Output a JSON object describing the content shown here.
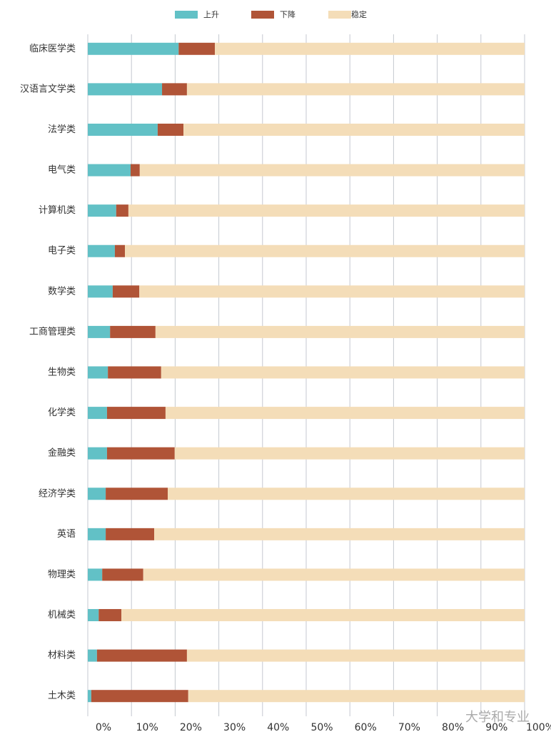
{
  "chart_data": {
    "type": "stacked-barh",
    "categories": [
      "临床医学类",
      "汉语言文学类",
      "法学类",
      "电气类",
      "计算机类",
      "电子类",
      "数学类",
      "工商管理类",
      "生物类",
      "化学类",
      "金融类",
      "经济学类",
      "英语",
      "物理类",
      "机械类",
      "材料类",
      "土木类"
    ],
    "series": [
      {
        "name": "上升",
        "color": "#62c1c6",
        "values": [
          20.8,
          17.0,
          16.0,
          9.8,
          6.5,
          6.2,
          5.7,
          5.1,
          4.6,
          4.4,
          4.4,
          4.1,
          4.1,
          3.3,
          2.5,
          2.1,
          0.8
        ]
      },
      {
        "name": "下降",
        "color": "#b05437",
        "values": [
          8.3,
          5.7,
          5.9,
          2.1,
          2.8,
          2.3,
          6.1,
          10.4,
          12.2,
          13.4,
          15.5,
          14.2,
          11.1,
          9.4,
          5.2,
          20.6,
          22.2
        ]
      },
      {
        "name": "稳定",
        "color": "#f4ddb8",
        "values": [
          70.9,
          77.3,
          78.1,
          88.1,
          90.7,
          91.5,
          88.2,
          84.5,
          83.2,
          82.2,
          80.1,
          81.7,
          84.8,
          87.3,
          92.3,
          77.3,
          77.0
        ]
      }
    ],
    "xlim": [
      0,
      100
    ],
    "xticks": [
      {
        "value": 0,
        "label": "0%"
      },
      {
        "value": 10,
        "label": "10%"
      },
      {
        "value": 20,
        "label": "20%"
      },
      {
        "value": 30,
        "label": "30%"
      },
      {
        "value": 40,
        "label": "40%"
      },
      {
        "value": 50,
        "label": "50%"
      },
      {
        "value": 60,
        "label": "60%"
      },
      {
        "value": 70,
        "label": "70%"
      },
      {
        "value": 80,
        "label": "80%"
      },
      {
        "value": 90,
        "label": "90%"
      },
      {
        "value": 100,
        "label": "100%"
      }
    ],
    "grid": true,
    "legend": "top",
    "watermark": "大学和专业"
  }
}
